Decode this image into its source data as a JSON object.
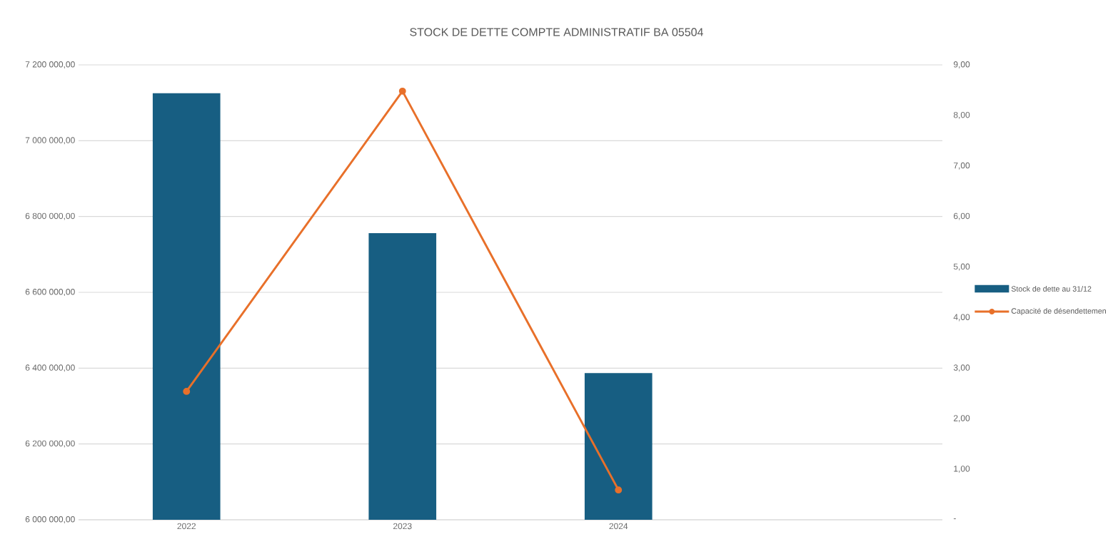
{
  "chart_data": {
    "type": "bar",
    "title": "STOCK DE DETTE COMPTE ADMINISTRATIF BA 05504",
    "categories": [
      "2022",
      "2023",
      "2024",
      null
    ],
    "series": [
      {
        "name": "Stock de dette au 31/12",
        "color": "#175e82",
        "values": [
          7125000,
          6756000,
          6387000,
          null
        ]
      },
      {
        "name": "Capacité de désendettemen",
        "type": "line",
        "axis": "y2",
        "color": "#e8702a",
        "marker": "circle",
        "values": [
          2.54,
          8.48,
          0.59,
          null
        ]
      }
    ],
    "ylim": [
      6000000,
      7200000
    ],
    "yticks": [
      {
        "value": 6000000,
        "label": "6 000 000,00"
      },
      {
        "value": 6200000,
        "label": "6 200 000,00"
      },
      {
        "value": 6400000,
        "label": "6 400 000,00"
      },
      {
        "value": 6600000,
        "label": "6 600 000,00"
      },
      {
        "value": 6800000,
        "label": "6 800 000,00"
      },
      {
        "value": 7000000,
        "label": "7 000 000,00"
      },
      {
        "value": 7200000,
        "label": "7 200 000,00"
      }
    ],
    "y2lim": [
      0,
      9
    ],
    "y2ticks": [
      {
        "value": 0,
        "label": "-"
      },
      {
        "value": 1,
        "label": "1,00"
      },
      {
        "value": 2,
        "label": "2,00"
      },
      {
        "value": 3,
        "label": "3,00"
      },
      {
        "value": 4,
        "label": "4,00"
      },
      {
        "value": 5,
        "label": "5,00"
      },
      {
        "value": 6,
        "label": "6,00"
      },
      {
        "value": 7,
        "label": "7,00"
      },
      {
        "value": 8,
        "label": "8,00"
      },
      {
        "value": 9,
        "label": "9,00"
      }
    ],
    "grid": "y",
    "legend": "right"
  }
}
